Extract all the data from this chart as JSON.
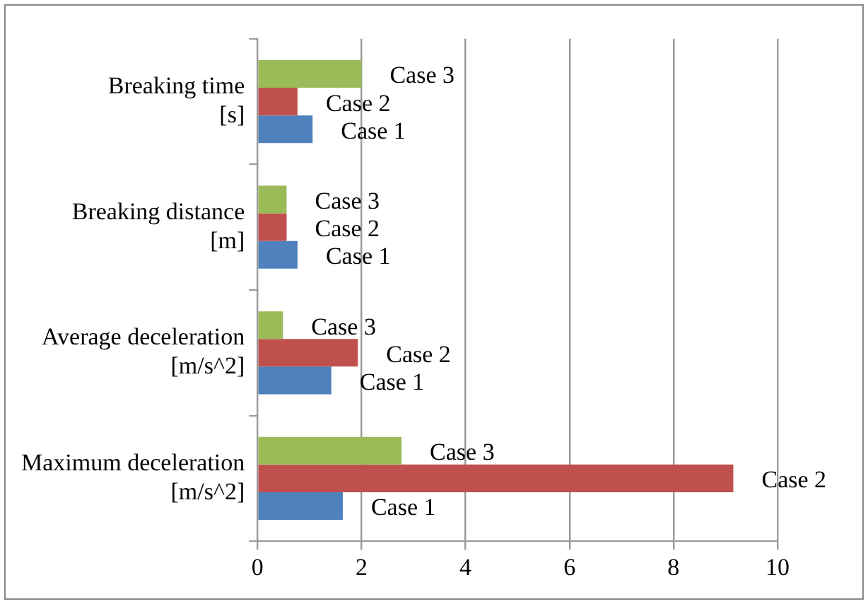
{
  "chart_data": {
    "type": "bar",
    "orientation": "horizontal",
    "categories": [
      "Breaking time\n[s]",
      "Breaking distance\n[m]",
      "Average deceleration\n[m/s^2]",
      "Maximum deceleration\n[m/s^2]"
    ],
    "series": [
      {
        "name": "Case 1",
        "color": "#4f81bd",
        "values": [
          1.06,
          0.77,
          1.42,
          1.64
        ]
      },
      {
        "name": "Case 2",
        "color": "#c0504d",
        "values": [
          0.77,
          0.56,
          1.93,
          9.15
        ]
      },
      {
        "name": "Case 3",
        "color": "#9bbb59",
        "values": [
          2.0,
          0.56,
          0.49,
          2.77
        ]
      }
    ],
    "xlim": [
      0,
      10
    ],
    "xticks": [
      0,
      2,
      4,
      6,
      8,
      10
    ],
    "grid": "x",
    "legend": false
  }
}
